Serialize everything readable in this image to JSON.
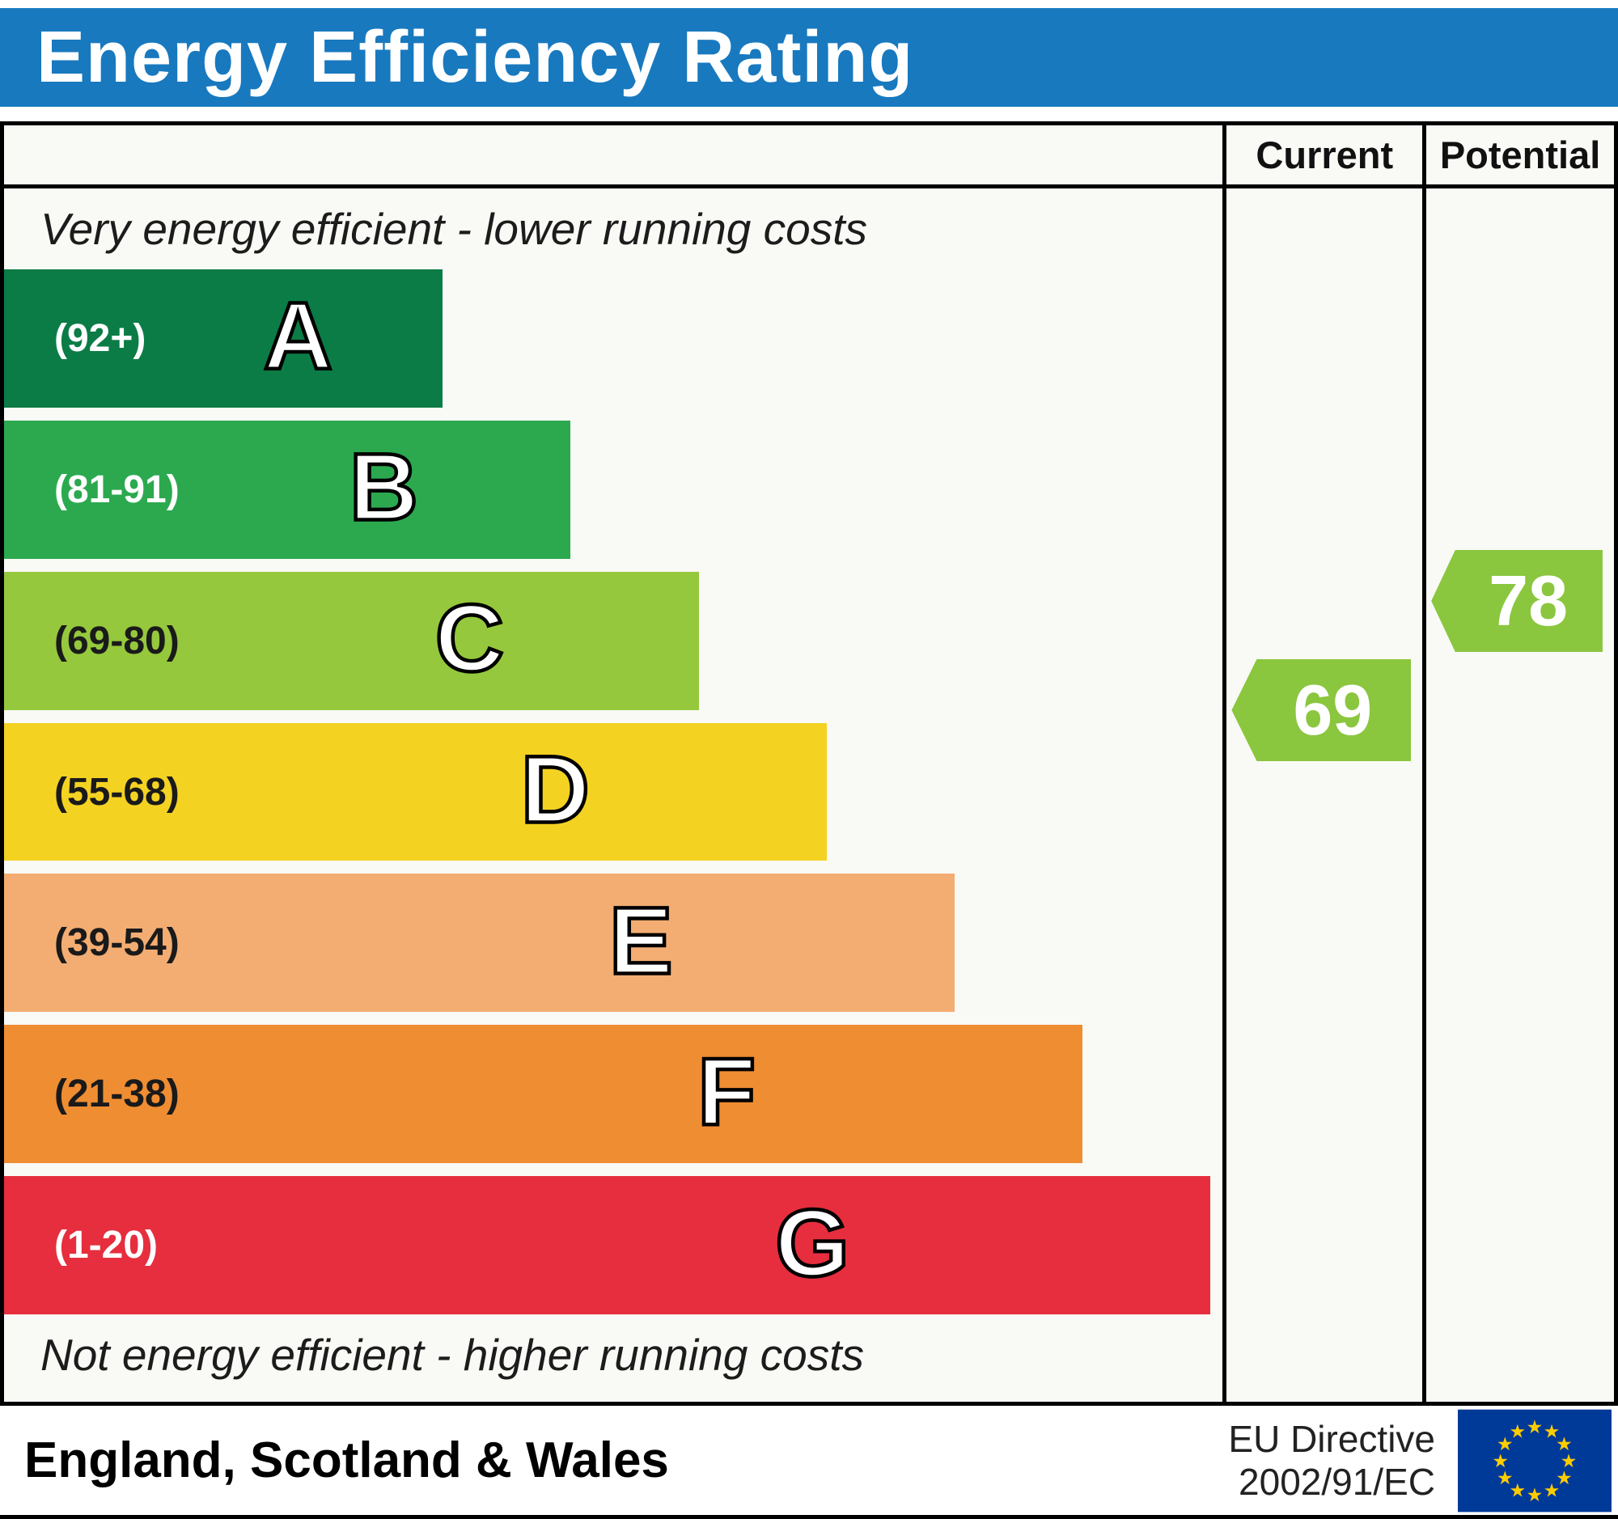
{
  "header": {
    "title": "Energy Efficiency Rating",
    "bg_color": "#1879bf"
  },
  "table": {
    "current_label": "Current",
    "potential_label": "Potential"
  },
  "notes": {
    "top": "Very energy efficient - lower running costs",
    "bottom": "Not energy efficient - higher running costs"
  },
  "chart_data": {
    "type": "bar",
    "title": "Energy Efficiency Rating",
    "bands": [
      {
        "letter": "A",
        "range": "(92+)",
        "min": 92,
        "max": 100,
        "color": "#0b7c45",
        "width_pct": 36,
        "range_text_color": "#ffffff"
      },
      {
        "letter": "B",
        "range": "(81-91)",
        "min": 81,
        "max": 91,
        "color": "#2ca94f",
        "width_pct": 46.5,
        "range_text_color": "#ffffff"
      },
      {
        "letter": "C",
        "range": "(69-80)",
        "min": 69,
        "max": 80,
        "color": "#95c83c",
        "width_pct": 57,
        "range_text_color": "#1a1a1a"
      },
      {
        "letter": "D",
        "range": "(55-68)",
        "min": 55,
        "max": 68,
        "color": "#f4d222",
        "width_pct": 67.5,
        "range_text_color": "#1a1a1a"
      },
      {
        "letter": "E",
        "range": "(39-54)",
        "min": 39,
        "max": 54,
        "color": "#f3ad72",
        "width_pct": 78,
        "range_text_color": "#1a1a1a"
      },
      {
        "letter": "F",
        "range": "(21-38)",
        "min": 21,
        "max": 38,
        "color": "#ef8d33",
        "width_pct": 88.5,
        "range_text_color": "#1a1a1a"
      },
      {
        "letter": "G",
        "range": "(1-20)",
        "min": 1,
        "max": 20,
        "color": "#e62e3e",
        "width_pct": 99,
        "range_text_color": "#ffffff"
      }
    ],
    "scores": {
      "current": {
        "value": 69,
        "band": "C",
        "color": "#8bc63f"
      },
      "potential": {
        "value": 78,
        "band": "C",
        "color": "#8bc63f"
      }
    }
  },
  "footer": {
    "region": "England, Scotland & Wales",
    "directive_line1": "EU Directive",
    "directive_line2": "2002/91/EC",
    "flag_icon": "eu-flag",
    "flag_colors": {
      "field": "#003a99",
      "stars": "#ffcc00"
    }
  }
}
